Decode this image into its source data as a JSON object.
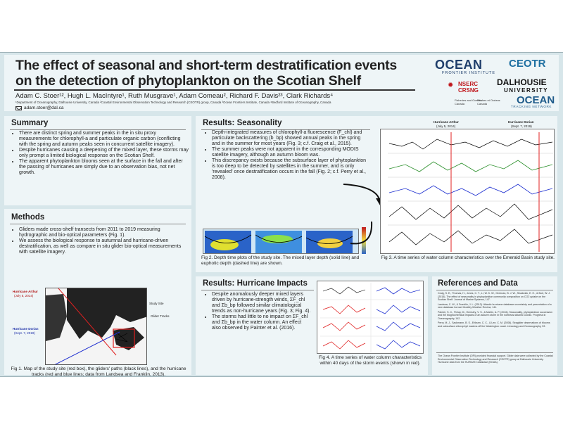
{
  "header": {
    "title_line1": "The effect of seasonal and short-term destratification events",
    "title_line2": "on the detection of phytoplankton on the Scotian Shelf",
    "authors": "Adam C. Stoer¹², Hugh L. MacIntyre¹, Ruth Musgrave¹, Adam Comeau², Richard F. Davis²³, Clark Richards⁴",
    "affiliations": "¹Department of Oceanography, Dalhousie University, Canada  ²Coastal Environmental Observation Technology and Research (CEOTR) group, Canada  ³Ocean Frontiers Institute, Canada  ⁴Bedford Institute of Oceanography, Canada",
    "email": "adam.stoer@dal.ca"
  },
  "logos": {
    "ofi": "OCEAN",
    "ofi_sub": "FRONTIER INSTITUTE",
    "ceotr": "CEOTR",
    "dalhousie": "DALHOUSIE",
    "dalhousie_sub": "UNIVERSITY",
    "nserc": "NSERC",
    "crsng": "CRSNG",
    "ocean_tracking": "OCEAN",
    "ocean_tracking_sub": "TRACKING NETWORK",
    "mpo_line1": "Fisheries and Oceans",
    "mpo_line2": "Canada",
    "mpo_fr_line1": "Pêches et Océans",
    "mpo_fr_line2": "Canada"
  },
  "summary": {
    "heading": "Summary",
    "bullets": [
      "There are distinct spring and summer peaks in the in situ proxy measurements for chlorophyll-a and particulate organic carbon (conflicting with the spring and autumn peaks seen in concurrent satellite imagery).",
      "Despite hurricanes causing a deepening of the mixed layer, these storms may only prompt a limited biological response on the Scotian Shelf.",
      "The apparent phytoplankton blooms seen at the surface in the fall and after the passing of hurricanes are simply due to an observation bias, not net growth."
    ]
  },
  "methods": {
    "heading": "Methods",
    "bullets": [
      "Gliders made cross-shelf transects from 2011 to 2019 measuring hydrographic and bio-optical parameters (Fig. 1).",
      "We assess the biological response to autumnal and hurricane-driven destratification, as well as compare in situ glider bio-optical measurements with satellite imagery."
    ],
    "map_labels": {
      "arthur": "Hurricane Arthur",
      "arthur_date": "(July 5, 2014)",
      "dorian": "Hurricane Dorian",
      "dorian_date": "(Sept. 7, 2019)",
      "study_site": "Study Site",
      "glider_tracks": "Glider Tracks"
    },
    "caption": "Fig 1. Map of the study site (red box), the gliders' paths (black lines), and the hurricane tracks (red and blue lines; data from Landsea and Franklin, 2013)."
  },
  "results_seasonality": {
    "heading": "Results: Seasonality",
    "bullets": [
      "Depth-integrated measures of chlorophyll-a fluorescence (F_chl) and particulate backscattering (b_bp) showed annual peaks in the spring and in the summer for most years (Fig. 3; c.f. Craig et al., 2015).",
      "The summer peaks were not apparent in the corresponding MODIS satellite imagery, although an autumn bloom was.",
      "This discrepancy exists because the subsurface layer of phytoplankton is too deep to be detected by satellites in the summer, and is only 'revealed' once destratification occurs in the fall (Fig. 2; c.f. Perry et al., 2008)."
    ],
    "fig2_caption": "Fig 2. Depth time plots of the study site. The mixed layer depth (solid line) and euphotic depth (dashed line) are shown.",
    "fig3_caption": "Fig 3. A time series of water column characteristics over the Emerald Basin study site.",
    "fig3_arthur": "Hurricane Arthur",
    "fig3_arthur_date": "(July 5, 2014)",
    "fig3_dorian": "Hurricane Dorian",
    "fig3_dorian_date": "(Sept. 7, 2019)"
  },
  "results_hurricanes": {
    "heading": "Results: Hurricane Impacts",
    "bullets": [
      "Despite anomalously deeper mixed layers driven by hurricane-strength winds, ΣF_chl and Σb_bp followed similar climatological trends as non-hurricane years (Fig. 3; Fig. 4).",
      "The storms had little to no impact on ΣF_chl and Σb_bp in the water column. An effect also observed by Painter et al. (2016)."
    ],
    "fig4_caption": "Fig 4. A time series of water column characteristics within 40 days of the storm events (shown in red)."
  },
  "references": {
    "heading": "References and Data",
    "items": [
      "Craig, S. E., Thomas, H., Jones, C. T., Li, W. K. W., Greenan, B. J. W., Shadwick, E. H., & Burt, W. J. (2015). The effect of seasonality in phytoplankton community composition on CO2 uptake on the Scotian Shelf. Journal of Marine Systems, 147.",
      "Landsea, C. W., & Franklin, J. L. (2013). Atlantic hurricane database uncertainty and presentation of a new database format. Monthly Weather Review, 141.",
      "Painter, S. C., Finlay, M., Hemsley, V. S., & Martin, A. P. (2016). Seasonality, phytoplankton succession and the biogeochemical impacts of an autumn storm in the northeast Atlantic Ocean. Progress in Oceanography, 142.",
      "Perry, M. J., Sackmann, B. S., Eriksen, C. C., & Lee, C. M. (2008). Seaglider observations of blooms and subsurface chlorophyll maxima off the Washington coast. Limnology and Oceanography, 53."
    ],
    "data_note": "The Ocean Frontier Institute (OFI) provided financial support. Glider data were collected by the Coastal Environmental Observation Technology and Research (CEOTR) group at Dalhousie University. Hurricane data from the HURDAT2 database (NOAA)."
  }
}
